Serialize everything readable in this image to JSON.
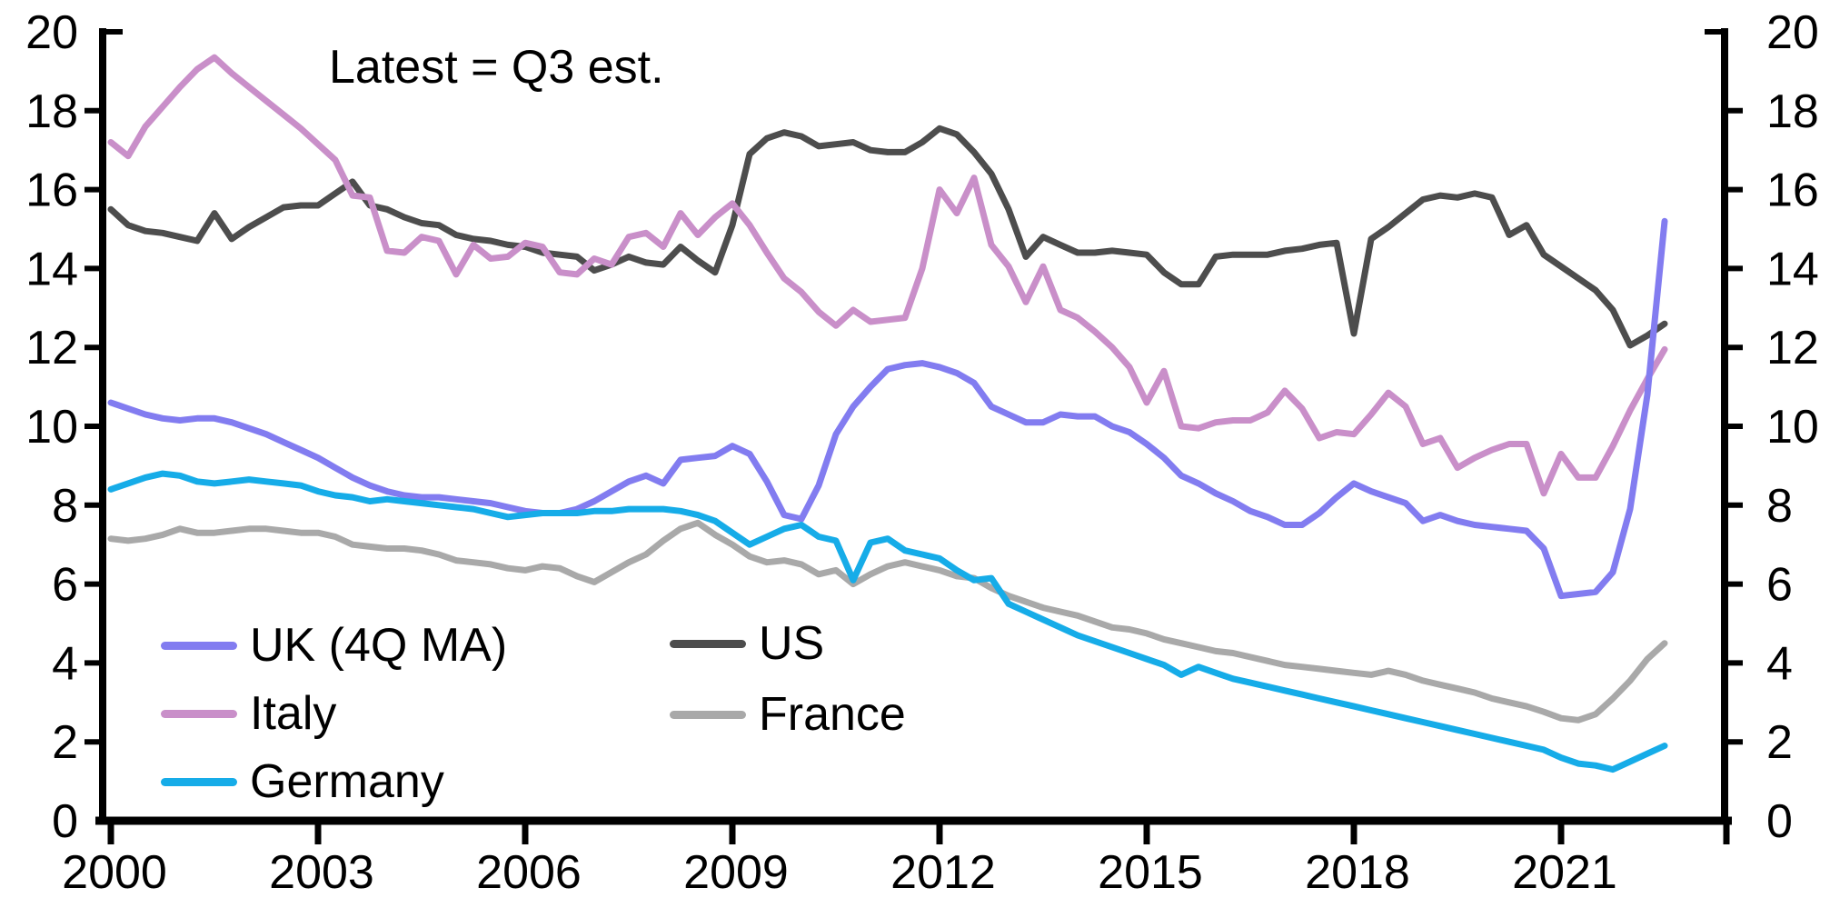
{
  "chart_data": {
    "type": "line",
    "title": "",
    "annotation": "Latest = Q3 est.",
    "xlabel": "",
    "ylabel": "",
    "x_start": 2000,
    "x_step": 0.25,
    "x_end_label": "2022 Q3",
    "ylim": [
      0,
      20
    ],
    "yticks": [
      0,
      2,
      4,
      6,
      8,
      10,
      12,
      14,
      16,
      18,
      20
    ],
    "xticks": [
      2000,
      2003,
      2006,
      2009,
      2012,
      2015,
      2018,
      2021
    ],
    "grid": false,
    "legend_position": "bottom-left, two columns",
    "axis_color": "#000000",
    "series": [
      {
        "name": "UK (4Q MA)",
        "color": "#827CF0",
        "values": [
          10.6,
          10.45,
          10.3,
          10.2,
          10.15,
          10.2,
          10.2,
          10.1,
          9.95,
          9.8,
          9.6,
          9.4,
          9.2,
          8.95,
          8.7,
          8.5,
          8.35,
          8.25,
          8.2,
          8.2,
          8.15,
          8.1,
          8.05,
          7.95,
          7.85,
          7.8,
          7.8,
          7.9,
          8.1,
          8.35,
          8.6,
          8.75,
          8.55,
          9.15,
          9.2,
          9.25,
          9.5,
          9.3,
          8.6,
          7.75,
          7.65,
          8.5,
          9.8,
          10.5,
          11.0,
          11.45,
          11.55,
          11.6,
          11.5,
          11.35,
          11.1,
          10.5,
          10.3,
          10.1,
          10.1,
          10.3,
          10.25,
          10.25,
          10.0,
          9.85,
          9.55,
          9.2,
          8.75,
          8.55,
          8.3,
          8.1,
          7.85,
          7.7,
          7.5,
          7.5,
          7.8,
          8.2,
          8.55,
          8.35,
          8.2,
          8.05,
          7.6,
          7.75,
          7.6,
          7.5,
          7.45,
          7.4,
          7.35,
          6.9,
          5.7,
          5.75,
          5.8,
          6.3,
          7.9,
          10.8,
          15.2
        ]
      },
      {
        "name": "US",
        "color": "#4D4D4D",
        "values": [
          15.5,
          15.1,
          14.95,
          14.9,
          14.8,
          14.7,
          15.4,
          14.75,
          15.05,
          15.3,
          15.55,
          15.6,
          15.6,
          15.9,
          16.2,
          15.6,
          15.5,
          15.3,
          15.15,
          15.1,
          14.85,
          14.75,
          14.7,
          14.6,
          14.55,
          14.4,
          14.35,
          14.3,
          13.95,
          14.1,
          14.3,
          14.15,
          14.1,
          14.55,
          14.2,
          13.9,
          15.1,
          16.9,
          17.3,
          17.45,
          17.35,
          17.1,
          17.15,
          17.2,
          17.0,
          16.95,
          16.95,
          17.2,
          17.55,
          17.4,
          16.95,
          16.4,
          15.5,
          14.3,
          14.8,
          14.6,
          14.4,
          14.4,
          14.45,
          14.4,
          14.35,
          13.9,
          13.6,
          13.6,
          14.3,
          14.35,
          14.35,
          14.35,
          14.45,
          14.5,
          14.6,
          14.65,
          12.35,
          14.75,
          15.05,
          15.4,
          15.75,
          15.85,
          15.8,
          15.9,
          15.8,
          14.85,
          15.1,
          14.35,
          14.05,
          13.75,
          13.45,
          12.95,
          12.05,
          12.3,
          12.6
        ]
      },
      {
        "name": "Italy",
        "color": "#C98FC9",
        "values": [
          17.2,
          16.85,
          17.6,
          18.1,
          18.6,
          19.05,
          19.35,
          18.95,
          18.6,
          18.25,
          17.9,
          17.55,
          17.15,
          16.75,
          15.85,
          15.8,
          14.45,
          14.4,
          14.8,
          14.7,
          13.85,
          14.6,
          14.25,
          14.3,
          14.65,
          14.55,
          13.9,
          13.85,
          14.25,
          14.1,
          14.8,
          14.9,
          14.55,
          15.4,
          14.85,
          15.3,
          15.65,
          15.1,
          14.4,
          13.75,
          13.4,
          12.9,
          12.55,
          12.95,
          12.65,
          12.7,
          12.75,
          14.0,
          16.0,
          15.4,
          16.3,
          14.6,
          14.05,
          13.15,
          14.05,
          12.95,
          12.75,
          12.4,
          12.0,
          11.5,
          10.6,
          11.4,
          10.0,
          9.95,
          10.1,
          10.15,
          10.15,
          10.35,
          10.9,
          10.45,
          9.7,
          9.85,
          9.8,
          10.3,
          10.85,
          10.5,
          9.55,
          9.7,
          8.95,
          9.2,
          9.4,
          9.55,
          9.55,
          8.3,
          9.3,
          8.7,
          8.7,
          9.5,
          10.4,
          11.2,
          11.95
        ]
      },
      {
        "name": "France",
        "color": "#A9A9A9",
        "values": [
          7.15,
          7.1,
          7.15,
          7.25,
          7.4,
          7.3,
          7.3,
          7.35,
          7.4,
          7.4,
          7.35,
          7.3,
          7.3,
          7.2,
          7.0,
          6.95,
          6.9,
          6.9,
          6.85,
          6.75,
          6.6,
          6.55,
          6.5,
          6.4,
          6.35,
          6.45,
          6.4,
          6.2,
          6.05,
          6.3,
          6.55,
          6.75,
          7.1,
          7.4,
          7.55,
          7.25,
          7.0,
          6.7,
          6.55,
          6.6,
          6.5,
          6.25,
          6.35,
          6.0,
          6.25,
          6.45,
          6.55,
          6.45,
          6.35,
          6.2,
          6.15,
          5.9,
          5.7,
          5.55,
          5.4,
          5.3,
          5.2,
          5.05,
          4.9,
          4.85,
          4.75,
          4.6,
          4.5,
          4.4,
          4.3,
          4.25,
          4.15,
          4.05,
          3.95,
          3.9,
          3.85,
          3.8,
          3.75,
          3.7,
          3.8,
          3.7,
          3.55,
          3.45,
          3.35,
          3.25,
          3.1,
          3.0,
          2.9,
          2.76,
          2.6,
          2.55,
          2.7,
          3.1,
          3.55,
          4.1,
          4.5
        ]
      },
      {
        "name": "Germany",
        "color": "#16ACE8",
        "values": [
          8.4,
          8.55,
          8.7,
          8.8,
          8.75,
          8.6,
          8.55,
          8.6,
          8.65,
          8.6,
          8.55,
          8.5,
          8.35,
          8.25,
          8.2,
          8.1,
          8.15,
          8.1,
          8.05,
          8.0,
          7.95,
          7.9,
          7.8,
          7.7,
          7.75,
          7.8,
          7.8,
          7.8,
          7.85,
          7.85,
          7.9,
          7.9,
          7.9,
          7.85,
          7.75,
          7.6,
          7.3,
          7.0,
          7.2,
          7.4,
          7.5,
          7.2,
          7.1,
          6.1,
          7.05,
          7.15,
          6.85,
          6.75,
          6.65,
          6.35,
          6.1,
          6.15,
          5.5,
          5.3,
          5.1,
          4.9,
          4.7,
          4.55,
          4.4,
          4.25,
          4.1,
          3.95,
          3.7,
          3.9,
          3.75,
          3.6,
          3.5,
          3.4,
          3.3,
          3.2,
          3.1,
          3.0,
          2.9,
          2.8,
          2.7,
          2.6,
          2.5,
          2.4,
          2.3,
          2.2,
          2.1,
          2.0,
          1.9,
          1.8,
          1.6,
          1.45,
          1.4,
          1.3,
          1.5,
          1.7,
          1.9
        ]
      }
    ]
  }
}
